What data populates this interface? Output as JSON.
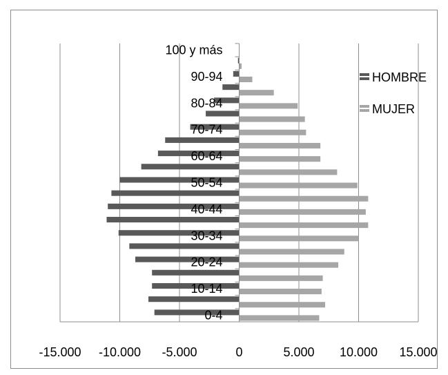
{
  "chart_data": {
    "type": "bar",
    "orientation": "horizontal",
    "title": "",
    "xlabel": "",
    "ylabel": "",
    "xlim": [
      -15000,
      15000
    ],
    "grid": true,
    "legend_position": "right",
    "categories": [
      "0-4",
      "5-9",
      "10-14",
      "15-19",
      "20-24",
      "25-29",
      "30-34",
      "35-39",
      "40-44",
      "45-49",
      "50-54",
      "55-59",
      "60-64",
      "65-69",
      "70-74",
      "75-79",
      "80-84",
      "85-89",
      "90-94",
      "95-99",
      "100 y más"
    ],
    "category_tick_labels": [
      "0-4",
      "10-14",
      "20-24",
      "30-34",
      "40-44",
      "50-54",
      "60-64",
      "70-74",
      "80-84",
      "90-94",
      "100 y más"
    ],
    "x_tick_labels": [
      "-15.000",
      "-10.000",
      "-5.000",
      "0",
      "5.000",
      "10.000",
      "15.000"
    ],
    "x_ticks": [
      -15000,
      -10000,
      -5000,
      0,
      5000,
      10000,
      15000
    ],
    "series": [
      {
        "name": "HOMBRE",
        "color": "#595959",
        "values": [
          -7100,
          -7600,
          -7300,
          -7300,
          -8700,
          -9200,
          -10100,
          -11100,
          -11000,
          -10700,
          -10000,
          -8200,
          -6800,
          -6200,
          -4100,
          -2800,
          -2100,
          -1400,
          -500,
          -100,
          -20
        ]
      },
      {
        "name": "MUJER",
        "color": "#a6a6a6",
        "values": [
          6700,
          7200,
          6900,
          7000,
          8300,
          8800,
          10000,
          10800,
          10600,
          10800,
          9900,
          8200,
          6800,
          6800,
          5600,
          5500,
          4900,
          2900,
          1100,
          200,
          20
        ]
      }
    ]
  }
}
